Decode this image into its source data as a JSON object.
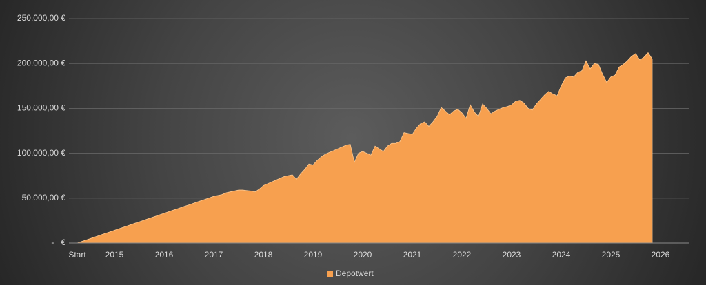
{
  "chart_data": {
    "type": "area",
    "categories": [
      "Start",
      null,
      null,
      null,
      null,
      null,
      null,
      null,
      null,
      "2015",
      null,
      null,
      null,
      null,
      null,
      null,
      null,
      null,
      null,
      null,
      null,
      "2016",
      null,
      null,
      null,
      null,
      null,
      null,
      null,
      null,
      null,
      null,
      null,
      "2017",
      null,
      null,
      null,
      null,
      null,
      null,
      null,
      null,
      null,
      null,
      null,
      "2018",
      null,
      null,
      null,
      null,
      null,
      null,
      null,
      null,
      null,
      null,
      null,
      "2019",
      null,
      null,
      null,
      null,
      null,
      null,
      null,
      null,
      null,
      null,
      null,
      "2020",
      null,
      null,
      null,
      null,
      null,
      null,
      null,
      null,
      null,
      null,
      null,
      "2021",
      null,
      null,
      null,
      null,
      null,
      null,
      null,
      null,
      null,
      null,
      null,
      "2022",
      null,
      null,
      null,
      null,
      null,
      null,
      null,
      null,
      null,
      null,
      null,
      "2023",
      null,
      null,
      null,
      null,
      null,
      null,
      null,
      null,
      null,
      null,
      null,
      "2024",
      null,
      null,
      null,
      null,
      null,
      null,
      null,
      null,
      null,
      null,
      null,
      "2025",
      null,
      null,
      null,
      null,
      null,
      null,
      null,
      null,
      null,
      null,
      null,
      "2026"
    ],
    "series": [
      {
        "name": "Depotwert",
        "color": "#f7a04f",
        "values": [
          0,
          1600,
          3200,
          4700,
          6300,
          7900,
          9500,
          11000,
          12600,
          14200,
          15800,
          17300,
          18900,
          20500,
          22100,
          23600,
          25200,
          26800,
          28400,
          29900,
          31500,
          33100,
          34700,
          36300,
          37800,
          39400,
          41000,
          42500,
          44100,
          45700,
          47300,
          48800,
          50400,
          52000,
          53000,
          54000,
          56000,
          57000,
          58000,
          59000,
          59000,
          58500,
          58000,
          57000,
          60000,
          64000,
          66000,
          68000,
          70000,
          72000,
          74000,
          75000,
          76000,
          71000,
          77000,
          82000,
          88000,
          87000,
          92000,
          96000,
          99000,
          101000,
          103000,
          105000,
          107000,
          109000,
          110000,
          90000,
          100000,
          102000,
          100000,
          98000,
          108000,
          105000,
          102000,
          108000,
          111000,
          111000,
          113000,
          123000,
          122000,
          121000,
          128000,
          133000,
          135000,
          130000,
          135000,
          141000,
          151000,
          147000,
          143000,
          147000,
          149000,
          145000,
          139000,
          154000,
          146000,
          141000,
          155000,
          150000,
          144000,
          147000,
          149000,
          151000,
          152000,
          154000,
          158000,
          159000,
          156000,
          150000,
          148000,
          155000,
          160000,
          165000,
          169000,
          166000,
          164000,
          175000,
          184000,
          186000,
          185000,
          190000,
          192000,
          203000,
          194000,
          200000,
          199000,
          188000,
          179000,
          185000,
          187000,
          196000,
          199000,
          203000,
          208000,
          211000,
          204000,
          207000,
          212000,
          205000,
          null,
          null
        ]
      }
    ],
    "ylim": [
      0,
      250000
    ],
    "yticks": [
      {
        "value": 0,
        "label": "-   €"
      },
      {
        "value": 50000,
        "label": "50.000,00 €"
      },
      {
        "value": 100000,
        "label": "100.000,00 €"
      },
      {
        "value": 150000,
        "label": "150.000,00 €"
      },
      {
        "value": 200000,
        "label": "200.000,00 €"
      },
      {
        "value": 250000,
        "label": "250.000,00 €"
      }
    ],
    "grid": true,
    "legend": "bottom"
  }
}
